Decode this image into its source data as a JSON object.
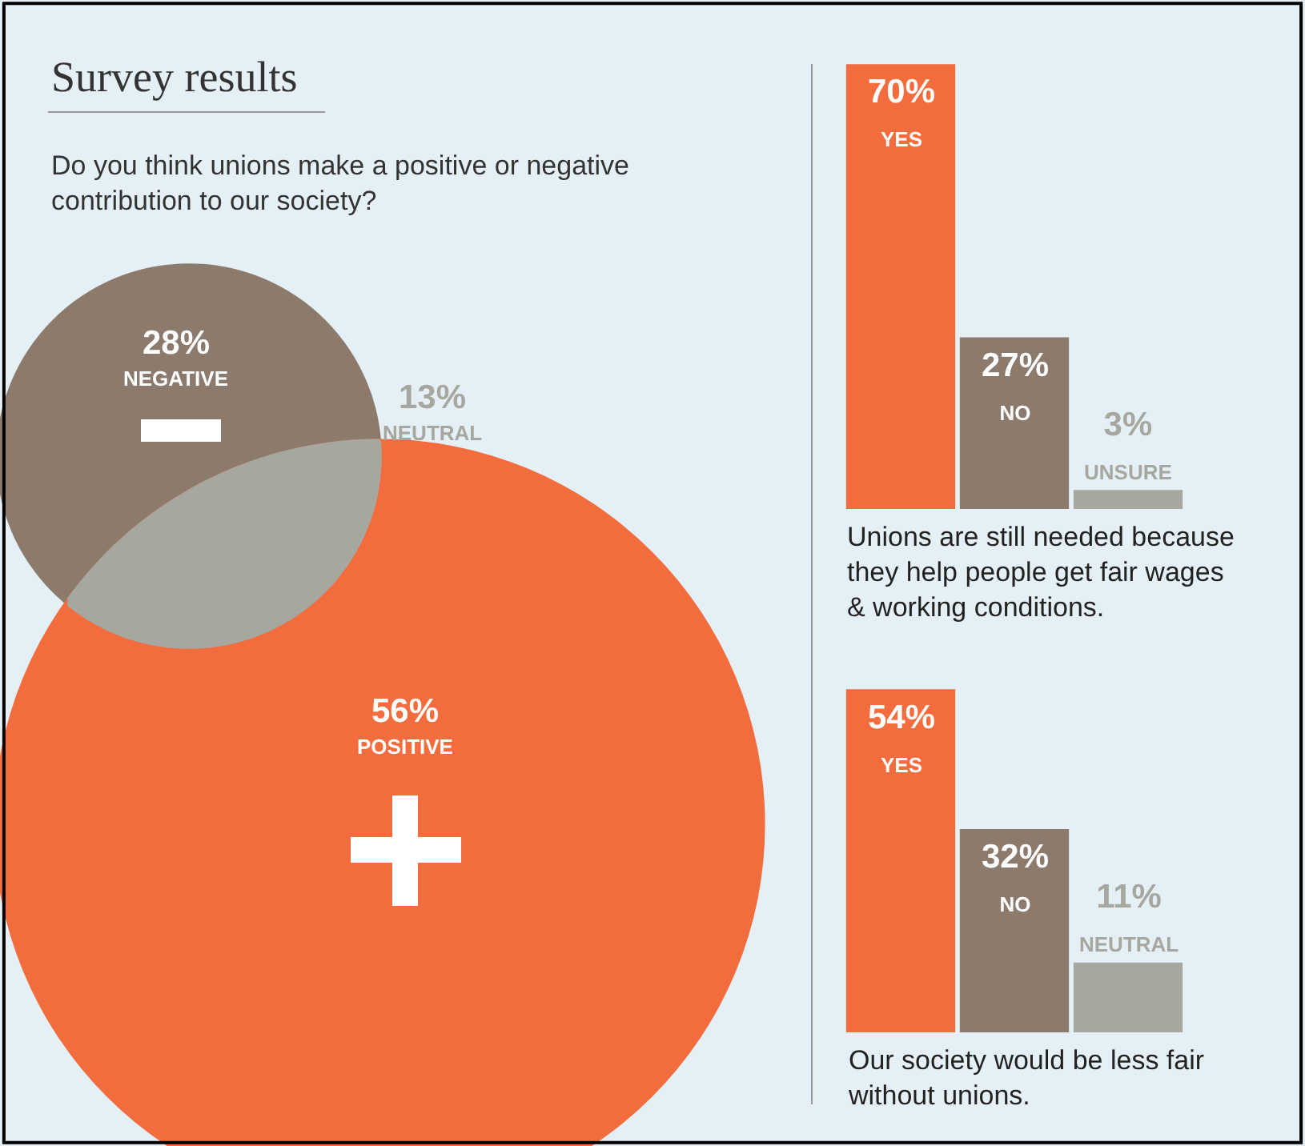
{
  "chart_data": [
    {
      "type": "other",
      "title": "Survey results",
      "subtitle": "Do you think unions make a positive or negative\ncontribution to our society?",
      "categories": [
        "NEGATIVE",
        "NEUTRAL",
        "POSITIVE"
      ],
      "values": [
        28,
        13,
        56
      ],
      "value_labels": [
        "28%",
        "13%",
        "56%"
      ],
      "colors": [
        "#8c7b6c",
        "#a6a89f",
        "#f26c3d"
      ]
    },
    {
      "type": "bar",
      "categories": [
        "YES",
        "NO",
        "UNSURE"
      ],
      "values": [
        70,
        27,
        3
      ],
      "value_labels": [
        "70%",
        "27%",
        "3%"
      ],
      "colors": [
        "#f26c3d",
        "#8c7b6c",
        "#a6a89f"
      ],
      "annotations": [
        "Unions are still needed because\nthey help people get fair wages\n& working conditions."
      ]
    },
    {
      "type": "bar",
      "categories": [
        "YES",
        "NO",
        "NEUTRAL"
      ],
      "values": [
        54,
        32,
        11
      ],
      "value_labels": [
        "54%",
        "32%",
        "11%"
      ],
      "colors": [
        "#f26c3d",
        "#8c7b6c",
        "#a6a89f"
      ],
      "annotations": [
        "Our society would be less fair\nwithout unions."
      ]
    }
  ]
}
